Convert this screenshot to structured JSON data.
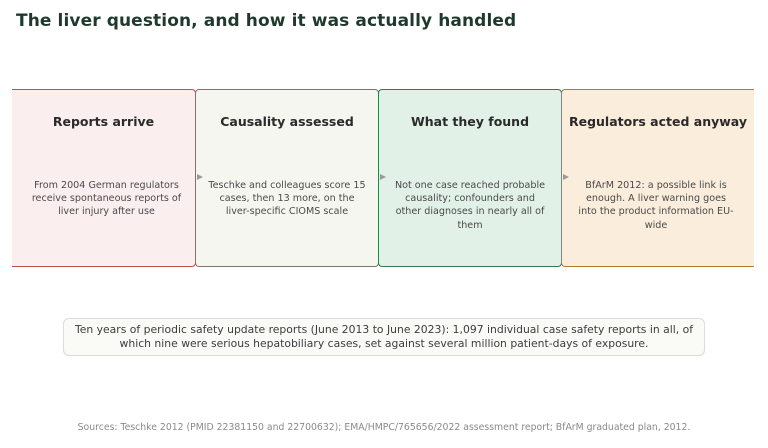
{
  "title": "The liver question, and how it was actually handled",
  "steps": [
    {
      "title": "Reports arrive",
      "text": "From 2004 German regulators receive spontaneous reports of liver injury after use",
      "color": "#c0504d"
    },
    {
      "title": "Causality assessed",
      "text": "Teschke and colleagues score 15 cases, then 13 more, on the liver-specific CIOMS scale",
      "color": "#7a7670"
    },
    {
      "title": "What they found",
      "text": "Not one case reached probable causality; confounders and other diagnoses in nearly all of them",
      "color": "#2f7a4e"
    },
    {
      "title": "Regulators acted anyway",
      "text": "BfArM 2012: a possible link is enough. A liver warning goes into the product information EU-wide",
      "color": "#b07d2a"
    }
  ],
  "summary": "Ten years of periodic safety update reports (June 2013 to June 2023): 1,097 individual case safety reports in all, of which nine were serious hepatobiliary cases, set against several million patient-days of exposure.",
  "sources": "Sources: Teschke 2012 (PMID 22381150 and 22700632); EMA/HMPC/765656/2022 assessment report; BfArM graduated plan, 2012."
}
